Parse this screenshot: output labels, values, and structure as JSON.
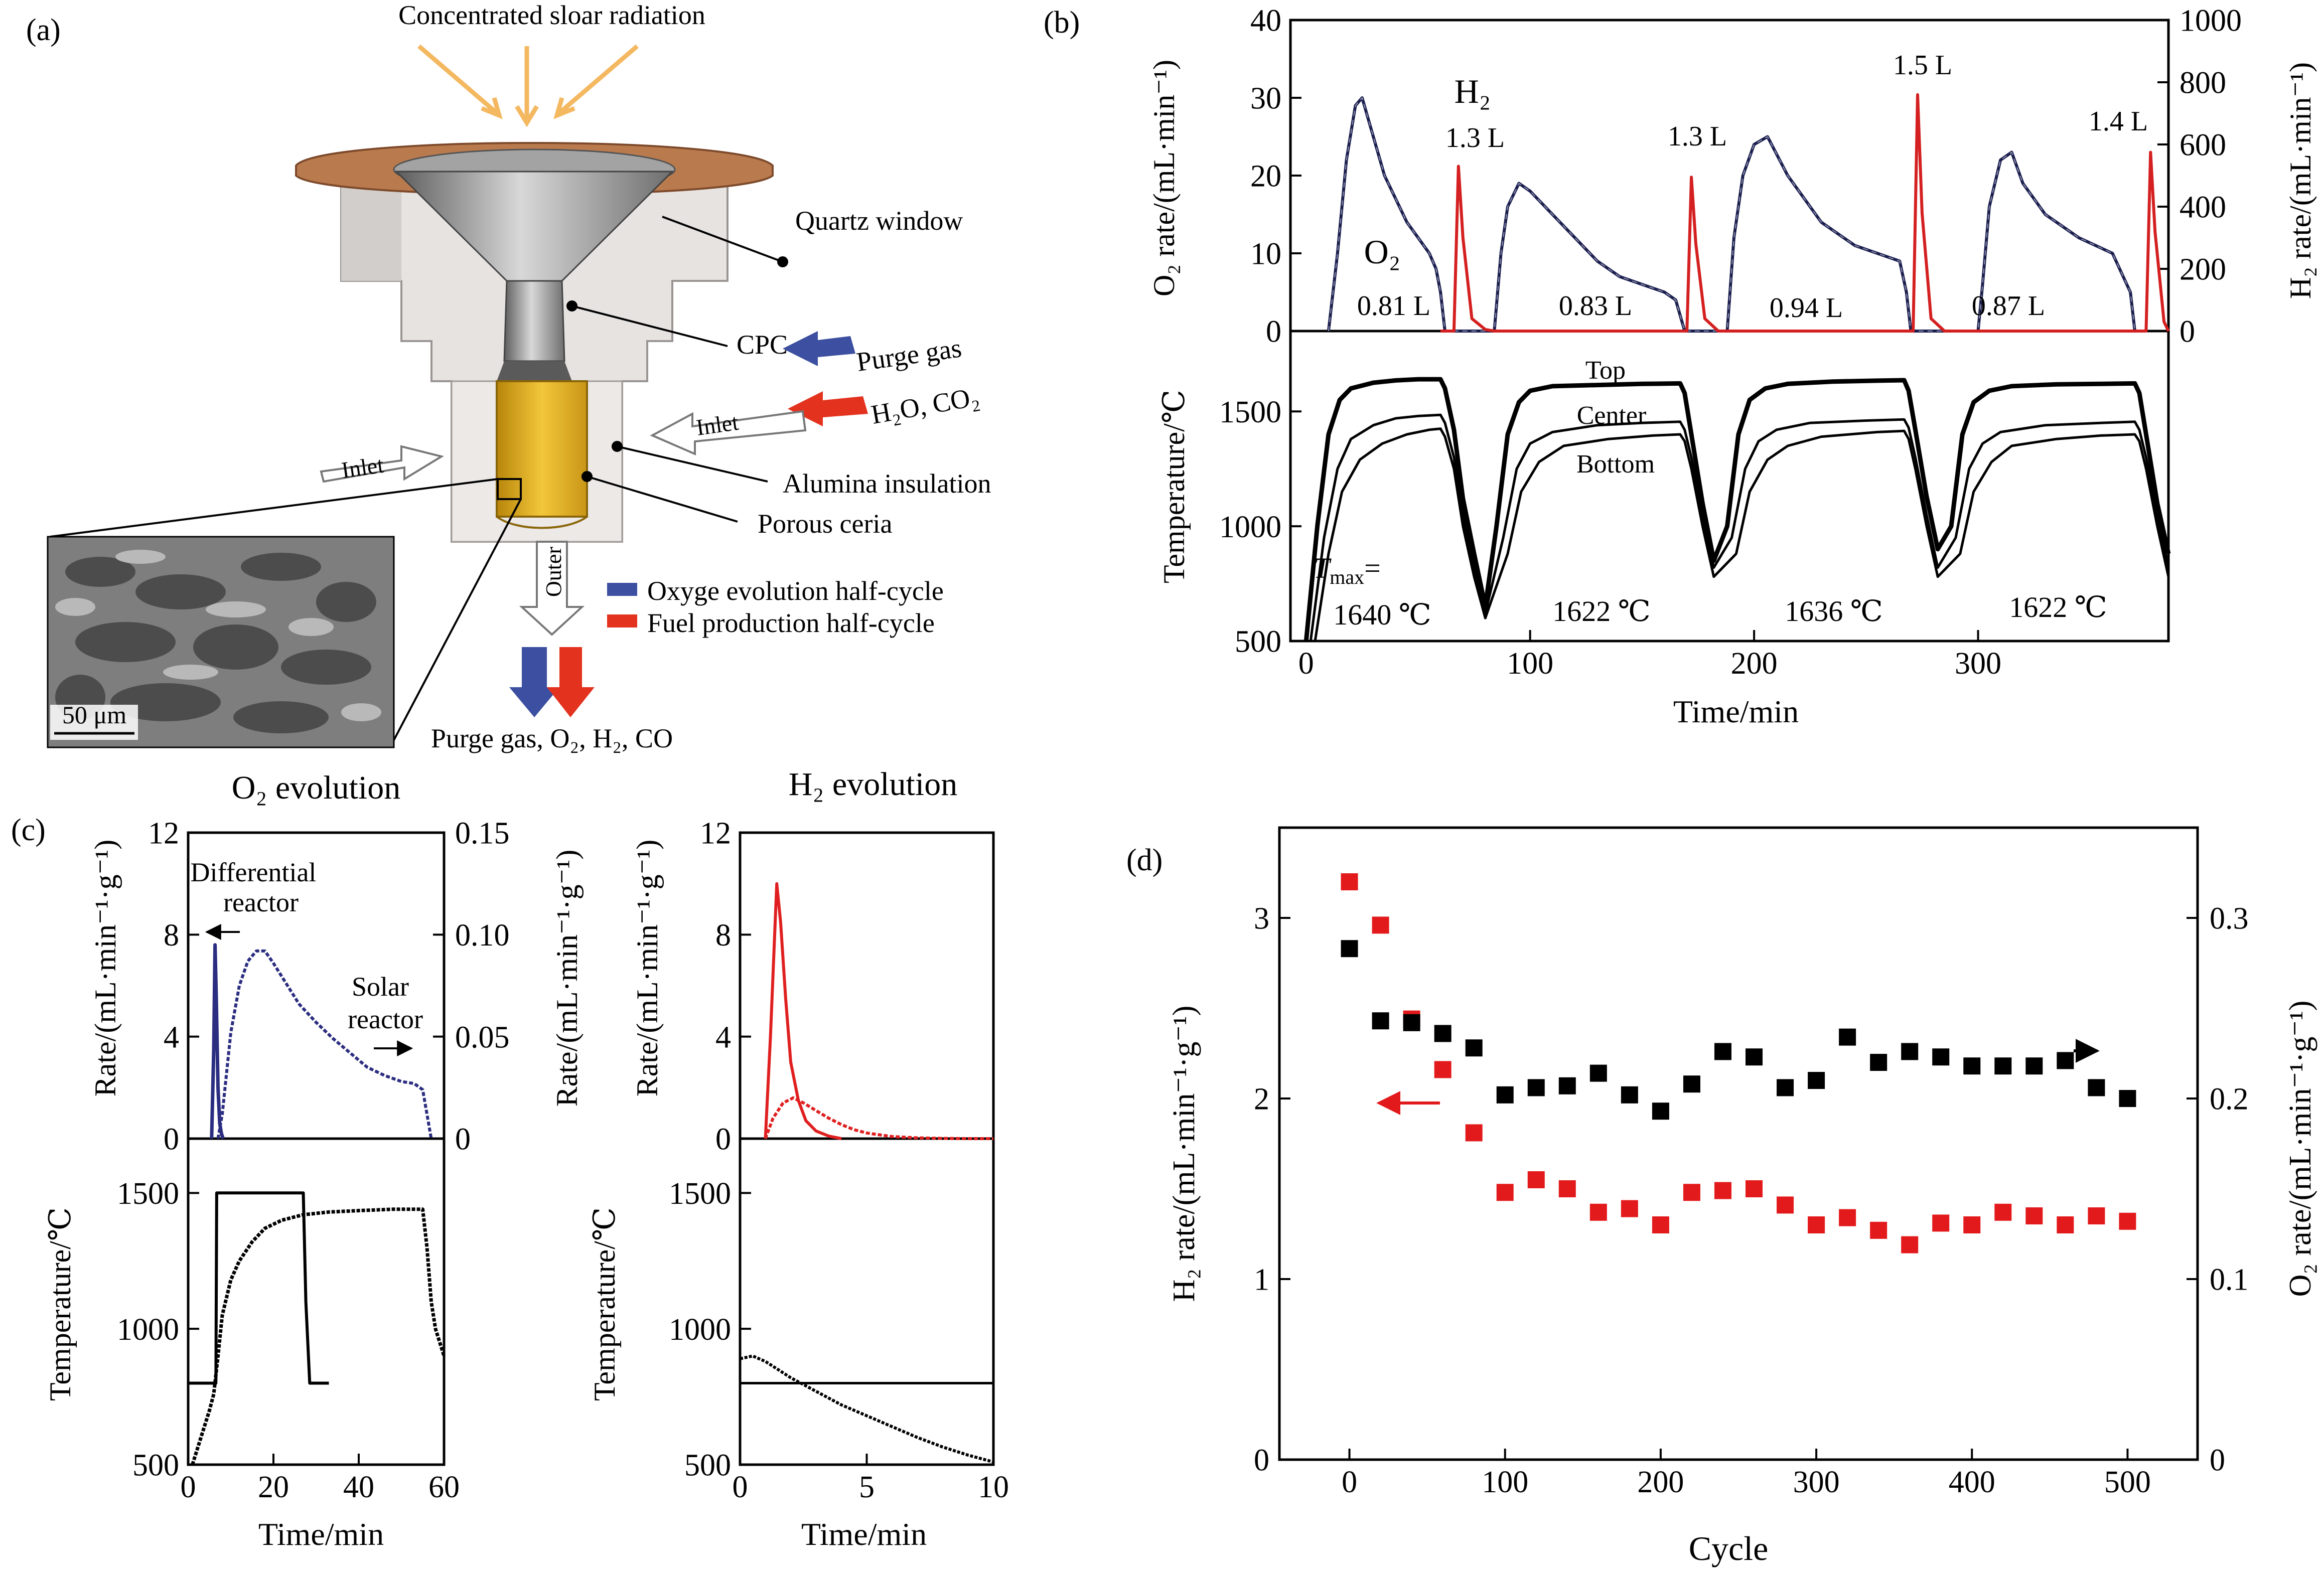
{
  "panel_a": {
    "label": "(a)",
    "radiation": "Concentrated sloar radiation",
    "quartz": "Quartz window",
    "cpc": "CPC",
    "purge": "Purge gas",
    "h2o": "H₂O, CO₂",
    "inlet_right": "Inlet",
    "inlet_left": "Inlet",
    "alumina": "Alumina insulation",
    "ceria": "Porous ceria",
    "outer": "Outer",
    "legend_oxygen": "Oxyge evolution half-cycle",
    "legend_fuel": "Fuel production half-cycle",
    "outlet": "Purge gas, O₂, H₂, CO",
    "scale": "50 μm",
    "colors": {
      "purge": "#3c4fa0",
      "fuel": "#e3321e",
      "ceria": "#e2b124",
      "flange": "#b97a4e",
      "arrow": "#f4b860"
    }
  },
  "panel_b": {
    "label": "(b)",
    "top_ylabel": "O₂ rate/(mL·min⁻¹)",
    "top_y2label": "H₂ rate/(mL·min⁻¹)",
    "bottom_ylabel": "Temperature/℃",
    "xlabel": "Time/min",
    "h2_label": "H₂",
    "o2_label": "O₂",
    "h2_volumes": [
      "1.3 L",
      "1.3 L",
      "1.5 L",
      "1.4 L"
    ],
    "o2_volumes": [
      "0.81 L",
      "0.83 L",
      "0.94 L",
      "0.87 L"
    ],
    "positions": [
      "Top",
      "Center",
      "Bottom"
    ],
    "tmax_label": "T",
    "tmax_sub": "max",
    "tmax_eq": "=",
    "tmax_values": [
      "1640 ℃",
      "1622 ℃",
      "1636 ℃",
      "1622 ℃"
    ],
    "colors": {
      "o2": "#1b1f4d",
      "h2": "#d42020"
    }
  },
  "panel_c": {
    "label": "(c)",
    "o2_title": "O₂ evolution",
    "h2_title": "H₂ evolution",
    "rate_label": "Rate/(mL·min⁻¹·g⁻¹)",
    "rate2_label": "Rate/(mL·min⁻¹·g⁻¹)",
    "temp_label": "Temperature/℃",
    "xlabel": "Time/min",
    "differential": "Differential",
    "reactor": "reactor",
    "solar": "Solar",
    "solar_reactor": "reactor",
    "colors": {
      "o2": "#2b2d80",
      "h2": "#e02020"
    }
  },
  "panel_d": {
    "label": "(d)",
    "xlabel": "Cycle",
    "ylabel": "H₂ rate/(mL·min⁻¹·g⁻¹)",
    "y2label": "O₂ rate/(mL·min⁻¹·g⁻¹)",
    "colors": {
      "h2": "#e31a1c",
      "o2": "#000000"
    }
  },
  "chart_data": [
    {
      "id": "b-top",
      "type": "line",
      "title": "",
      "xlabel": "",
      "ylabel": "O₂ rate/(mL·min⁻¹)",
      "y2label": "H₂ rate/(mL·min⁻¹)",
      "xlim": [
        -7,
        385
      ],
      "ylim": [
        0,
        40
      ],
      "y2lim": [
        0,
        1000
      ],
      "yticks": [
        0,
        10,
        20,
        30,
        40
      ],
      "y2ticks": [
        0,
        200,
        400,
        600,
        800,
        1000
      ],
      "series": [
        {
          "name": "O2",
          "axis": "left",
          "x": [
            10,
            14,
            18,
            22,
            25,
            30,
            35,
            40,
            45,
            50,
            55,
            58,
            60,
            62,
            84,
            87,
            90,
            95,
            100,
            110,
            120,
            130,
            140,
            150,
            160,
            165,
            167,
            169,
            188,
            191,
            195,
            200,
            206,
            215,
            230,
            245,
            255,
            265,
            268,
            270,
            300,
            302,
            305,
            310,
            315,
            320,
            330,
            345,
            360,
            368,
            370
          ],
          "y": [
            0,
            10,
            22,
            29,
            30,
            25,
            20,
            17,
            14,
            12,
            10,
            8,
            5,
            0,
            0,
            10,
            16,
            19,
            18,
            15,
            12,
            9,
            7,
            6,
            5,
            4,
            2,
            0,
            0,
            12,
            20,
            24,
            25,
            20,
            14,
            11,
            10,
            9,
            5,
            0,
            0,
            6,
            16,
            22,
            23,
            19,
            15,
            12,
            10,
            5,
            0
          ]
        },
        {
          "name": "H2",
          "axis": "right",
          "x": [
            60,
            66,
            68,
            70,
            74,
            80,
            84,
            162,
            170,
            172,
            174,
            178,
            184,
            268,
            271,
            273,
            275,
            279,
            285,
            372,
            375,
            377,
            379,
            383,
            385
          ],
          "y": [
            0,
            0,
            530,
            300,
            40,
            5,
            0,
            0,
            0,
            495,
            280,
            40,
            0,
            0,
            0,
            760,
            380,
            40,
            0,
            0,
            0,
            575,
            320,
            30,
            0
          ]
        }
      ],
      "annotations": [
        "H₂",
        "O₂",
        "1.3 L",
        "1.3 L",
        "1.5 L",
        "1.4 L",
        "0.81 L",
        "0.83 L",
        "0.94 L",
        "0.87 L"
      ]
    },
    {
      "id": "b-bottom",
      "type": "line",
      "xlabel": "Time/min",
      "ylabel": "Temperature/℃",
      "xlim": [
        -7,
        385
      ],
      "ylim": [
        500,
        1850
      ],
      "xticks": [
        0,
        100,
        200,
        300
      ],
      "yticks": [
        500,
        1000,
        1500
      ],
      "series": [
        {
          "name": "Top",
          "x": [
            0,
            5,
            10,
            15,
            20,
            30,
            40,
            50,
            60,
            62,
            66,
            70,
            75,
            80,
            85,
            90,
            95,
            100,
            110,
            130,
            150,
            167,
            169,
            172,
            177,
            182,
            188,
            193,
            198,
            205,
            215,
            235,
            255,
            267,
            269,
            272,
            277,
            282,
            288,
            293,
            298,
            305,
            315,
            335,
            355,
            370,
            372,
            375,
            380,
            385
          ],
          "y": [
            500,
            1000,
            1400,
            1550,
            1600,
            1625,
            1635,
            1640,
            1640,
            1600,
            1420,
            1120,
            880,
            650,
            1000,
            1400,
            1540,
            1590,
            1610,
            1615,
            1620,
            1622,
            1580,
            1400,
            1100,
            850,
            1000,
            1400,
            1550,
            1600,
            1620,
            1630,
            1634,
            1636,
            1590,
            1420,
            1130,
            900,
            1000,
            1400,
            1540,
            1590,
            1610,
            1618,
            1620,
            1622,
            1580,
            1400,
            1100,
            880
          ]
        },
        {
          "name": "Center",
          "x": [
            2,
            8,
            14,
            20,
            30,
            40,
            50,
            60,
            62,
            66,
            70,
            75,
            80,
            88,
            94,
            100,
            110,
            130,
            150,
            167,
            169,
            172,
            177,
            182,
            190,
            196,
            202,
            210,
            225,
            250,
            267,
            269,
            272,
            277,
            282,
            290,
            296,
            302,
            310,
            330,
            355,
            370,
            372,
            375,
            380,
            385
          ],
          "y": [
            500,
            950,
            1250,
            1380,
            1440,
            1470,
            1480,
            1485,
            1450,
            1300,
            1050,
            820,
            620,
            950,
            1250,
            1360,
            1410,
            1440,
            1450,
            1455,
            1420,
            1300,
            1050,
            820,
            950,
            1250,
            1370,
            1420,
            1450,
            1460,
            1465,
            1430,
            1300,
            1050,
            820,
            950,
            1250,
            1360,
            1410,
            1440,
            1450,
            1455,
            1420,
            1300,
            1050,
            820
          ]
        },
        {
          "name": "Bottom",
          "x": [
            4,
            10,
            16,
            24,
            34,
            45,
            55,
            60,
            62,
            66,
            70,
            75,
            80,
            90,
            96,
            104,
            115,
            135,
            155,
            167,
            169,
            172,
            177,
            182,
            192,
            198,
            206,
            215,
            230,
            255,
            267,
            269,
            272,
            277,
            282,
            292,
            298,
            306,
            315,
            335,
            355,
            370,
            372,
            375,
            380,
            385
          ],
          "y": [
            500,
            880,
            1150,
            1290,
            1360,
            1400,
            1420,
            1425,
            1390,
            1250,
            1000,
            780,
            600,
            880,
            1150,
            1280,
            1350,
            1380,
            1395,
            1400,
            1370,
            1250,
            1000,
            780,
            880,
            1150,
            1290,
            1350,
            1390,
            1410,
            1415,
            1380,
            1250,
            1000,
            780,
            880,
            1150,
            1280,
            1350,
            1380,
            1395,
            1400,
            1370,
            1250,
            1000,
            780
          ]
        }
      ],
      "annotations": [
        "Top",
        "Center",
        "Bottom",
        "T_max=",
        "1640 ℃",
        "1622 ℃",
        "1636 ℃",
        "1622 ℃"
      ]
    },
    {
      "id": "c-o2-rate",
      "type": "line",
      "title": "O₂ evolution",
      "ylabel": "Rate/(mL·min⁻¹·g⁻¹)",
      "y2label": "Rate/(mL·min⁻¹·g⁻¹)",
      "xlim": [
        0,
        60
      ],
      "ylim": [
        0,
        12
      ],
      "y2lim": [
        0,
        0.15
      ],
      "yticks": [
        0,
        4,
        8,
        12
      ],
      "y2ticks": [
        0,
        0.05,
        0.1,
        0.15
      ],
      "series": [
        {
          "name": "Differential reactor",
          "axis": "left",
          "x": [
            5.5,
            6.0,
            6.3,
            6.6,
            7.0,
            7.4,
            7.8,
            8.2
          ],
          "y": [
            0,
            3.5,
            7.6,
            5.5,
            2.0,
            0.6,
            0.2,
            0
          ]
        },
        {
          "name": "Solar reactor",
          "axis": "right",
          "x": [
            7,
            8,
            9,
            10,
            12,
            14,
            16,
            18,
            20,
            23,
            26,
            30,
            34,
            38,
            42,
            46,
            50,
            53,
            55,
            56,
            57
          ],
          "y": [
            0,
            0.012,
            0.032,
            0.052,
            0.075,
            0.087,
            0.092,
            0.092,
            0.086,
            0.076,
            0.066,
            0.057,
            0.049,
            0.042,
            0.035,
            0.031,
            0.028,
            0.027,
            0.024,
            0.012,
            0
          ]
        }
      ],
      "annotations": [
        "Differential reactor",
        "Solar reactor"
      ]
    },
    {
      "id": "c-o2-temp",
      "type": "line",
      "xlabel": "Time/min",
      "ylabel": "Temperature/℃",
      "xlim": [
        0,
        60
      ],
      "ylim": [
        500,
        1700
      ],
      "xticks": [
        0,
        20,
        40,
        60
      ],
      "yticks": [
        500,
        1000,
        1500
      ],
      "series": [
        {
          "name": "Differential reactor",
          "x": [
            0,
            6.5,
            6.7,
            27,
            27.6,
            28.5,
            33
          ],
          "y": [
            800,
            800,
            1500,
            1500,
            1100,
            800,
            800
          ]
        },
        {
          "name": "Solar reactor",
          "x": [
            1,
            3,
            5,
            6,
            7,
            8,
            10,
            12,
            15,
            18,
            22,
            27,
            33,
            40,
            48,
            55,
            56,
            57,
            58,
            59,
            60
          ],
          "y": [
            500,
            600,
            700,
            760,
            900,
            1050,
            1180,
            1250,
            1320,
            1370,
            1400,
            1420,
            1430,
            1435,
            1440,
            1440,
            1300,
            1100,
            1000,
            950,
            900
          ]
        }
      ]
    },
    {
      "id": "c-h2-rate",
      "type": "line",
      "title": "H₂ evolution",
      "ylabel": "Rate/(mL·min⁻¹·g⁻¹)",
      "xlim": [
        0,
        10
      ],
      "ylim": [
        0,
        12
      ],
      "yticks": [
        0,
        4,
        8,
        12
      ],
      "series": [
        {
          "name": "Differential reactor",
          "x": [
            1.0,
            1.2,
            1.45,
            1.6,
            1.8,
            2.0,
            2.3,
            2.6,
            3.0,
            3.5,
            4.0
          ],
          "y": [
            0,
            4.0,
            10.0,
            8.5,
            5.5,
            3.0,
            1.5,
            0.7,
            0.3,
            0.1,
            0
          ]
        },
        {
          "name": "Solar reactor",
          "x": [
            1.0,
            1.3,
            1.7,
            2.1,
            2.5,
            3.0,
            3.5,
            4.0,
            4.5,
            5.0,
            6.0,
            7.0,
            8.0,
            9.0,
            10.0
          ],
          "y": [
            0,
            0.8,
            1.4,
            1.6,
            1.4,
            1.1,
            0.8,
            0.55,
            0.35,
            0.22,
            0.08,
            0.03,
            0.01,
            0,
            0
          ]
        }
      ]
    },
    {
      "id": "c-h2-temp",
      "type": "line",
      "xlabel": "Time/min",
      "ylabel": "Temperature/℃",
      "xlim": [
        0,
        10
      ],
      "ylim": [
        500,
        1700
      ],
      "xticks": [
        0,
        5,
        10
      ],
      "yticks": [
        500,
        1000,
        1500
      ],
      "series": [
        {
          "name": "Differential reactor",
          "x": [
            0,
            10
          ],
          "y": [
            800,
            800
          ]
        },
        {
          "name": "Solar reactor",
          "x": [
            0,
            0.5,
            1,
            1.5,
            2,
            3,
            4,
            5,
            6,
            7,
            8,
            9,
            10
          ],
          "y": [
            890,
            900,
            880,
            850,
            820,
            770,
            720,
            680,
            640,
            600,
            565,
            535,
            510
          ]
        }
      ]
    },
    {
      "id": "d",
      "type": "scatter",
      "xlabel": "Cycle",
      "ylabel": "H₂ rate/(mL·min⁻¹·g⁻¹)",
      "y2label": "O₂ rate/(mL·min⁻¹·g⁻¹)",
      "xlim": [
        -45,
        545
      ],
      "ylim": [
        0,
        3.5
      ],
      "y2lim": [
        0,
        0.35
      ],
      "xticks": [
        0,
        100,
        200,
        300,
        400,
        500
      ],
      "yticks": [
        0,
        1,
        2,
        3
      ],
      "y2ticks": [
        0,
        0.1,
        0.2,
        0.3
      ],
      "series": [
        {
          "name": "H2 rate",
          "axis": "left",
          "color": "#e31a1c",
          "x": [
            0,
            20,
            40,
            60,
            80,
            100,
            120,
            140,
            160,
            180,
            200,
            220,
            240,
            260,
            280,
            300,
            320,
            340,
            360,
            380,
            400,
            420,
            440,
            460,
            480,
            500
          ],
          "y": [
            3.2,
            2.96,
            2.44,
            2.16,
            1.81,
            1.48,
            1.55,
            1.5,
            1.37,
            1.39,
            1.3,
            1.48,
            1.49,
            1.5,
            1.41,
            1.3,
            1.34,
            1.27,
            1.19,
            1.31,
            1.3,
            1.37,
            1.35,
            1.3,
            1.35,
            1.32
          ]
        },
        {
          "name": "O2 rate",
          "axis": "right",
          "color": "#000000",
          "x": [
            0,
            20,
            40,
            60,
            80,
            100,
            120,
            140,
            160,
            180,
            200,
            220,
            240,
            260,
            280,
            300,
            320,
            340,
            360,
            380,
            400,
            420,
            440,
            460,
            480,
            500
          ],
          "y": [
            0.283,
            0.243,
            0.242,
            0.236,
            0.228,
            0.202,
            0.206,
            0.207,
            0.214,
            0.202,
            0.193,
            0.208,
            0.226,
            0.223,
            0.206,
            0.21,
            0.234,
            0.22,
            0.226,
            0.223,
            0.218,
            0.218,
            0.218,
            0.221,
            0.206,
            0.2
          ]
        }
      ]
    }
  ]
}
